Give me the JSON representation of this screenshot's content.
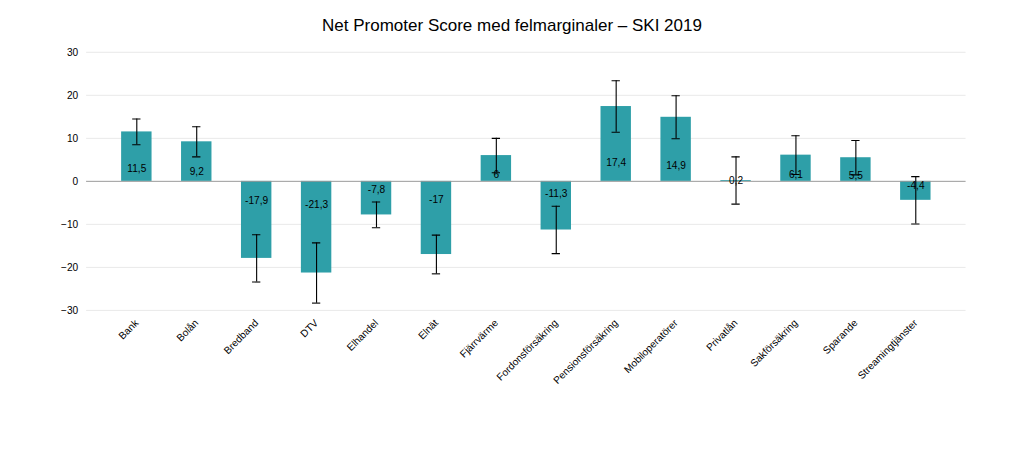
{
  "chart_data": {
    "type": "bar",
    "title": "Net Promoter Score med felmarginaler – SKI 2019",
    "categories": [
      "Bank",
      "Bolån",
      "Bredband",
      "DTV",
      "Elhandel",
      "Elnät",
      "Fjärrvärme",
      "Fordonsförsäkring",
      "Pensionsförsäkring",
      "Mobiloperatörer",
      "Privatlån",
      "Sakförsäkring",
      "Sparande",
      "Streamingtjänster"
    ],
    "values": [
      11.5,
      9.2,
      -17.9,
      -21.3,
      -7.8,
      -17.0,
      6.0,
      -11.3,
      17.4,
      14.9,
      0.2,
      6.1,
      5.5,
      -4.4
    ],
    "value_labels": [
      "11,5",
      "9,2",
      "-17,9",
      "-21,3",
      "-7,8",
      "-17",
      "6",
      "-11,3",
      "17,4",
      "14,9",
      "0,2",
      "6,1",
      "5,5",
      "-4,4"
    ],
    "error_lower": [
      3.0,
      3.5,
      5.5,
      7.0,
      3.0,
      4.5,
      4.0,
      5.5,
      6.0,
      5.0,
      5.5,
      4.5,
      4.0,
      5.5
    ],
    "error_upper": [
      3.0,
      3.5,
      5.5,
      7.0,
      3.0,
      4.5,
      4.0,
      5.5,
      6.0,
      5.0,
      5.5,
      4.5,
      4.0,
      5.5
    ],
    "color": "#2E9FA8",
    "ylim": [
      -30,
      30
    ],
    "yticks": [
      -30,
      -20,
      -10,
      0,
      10,
      20,
      30
    ],
    "grid": true,
    "data_labels": true
  }
}
